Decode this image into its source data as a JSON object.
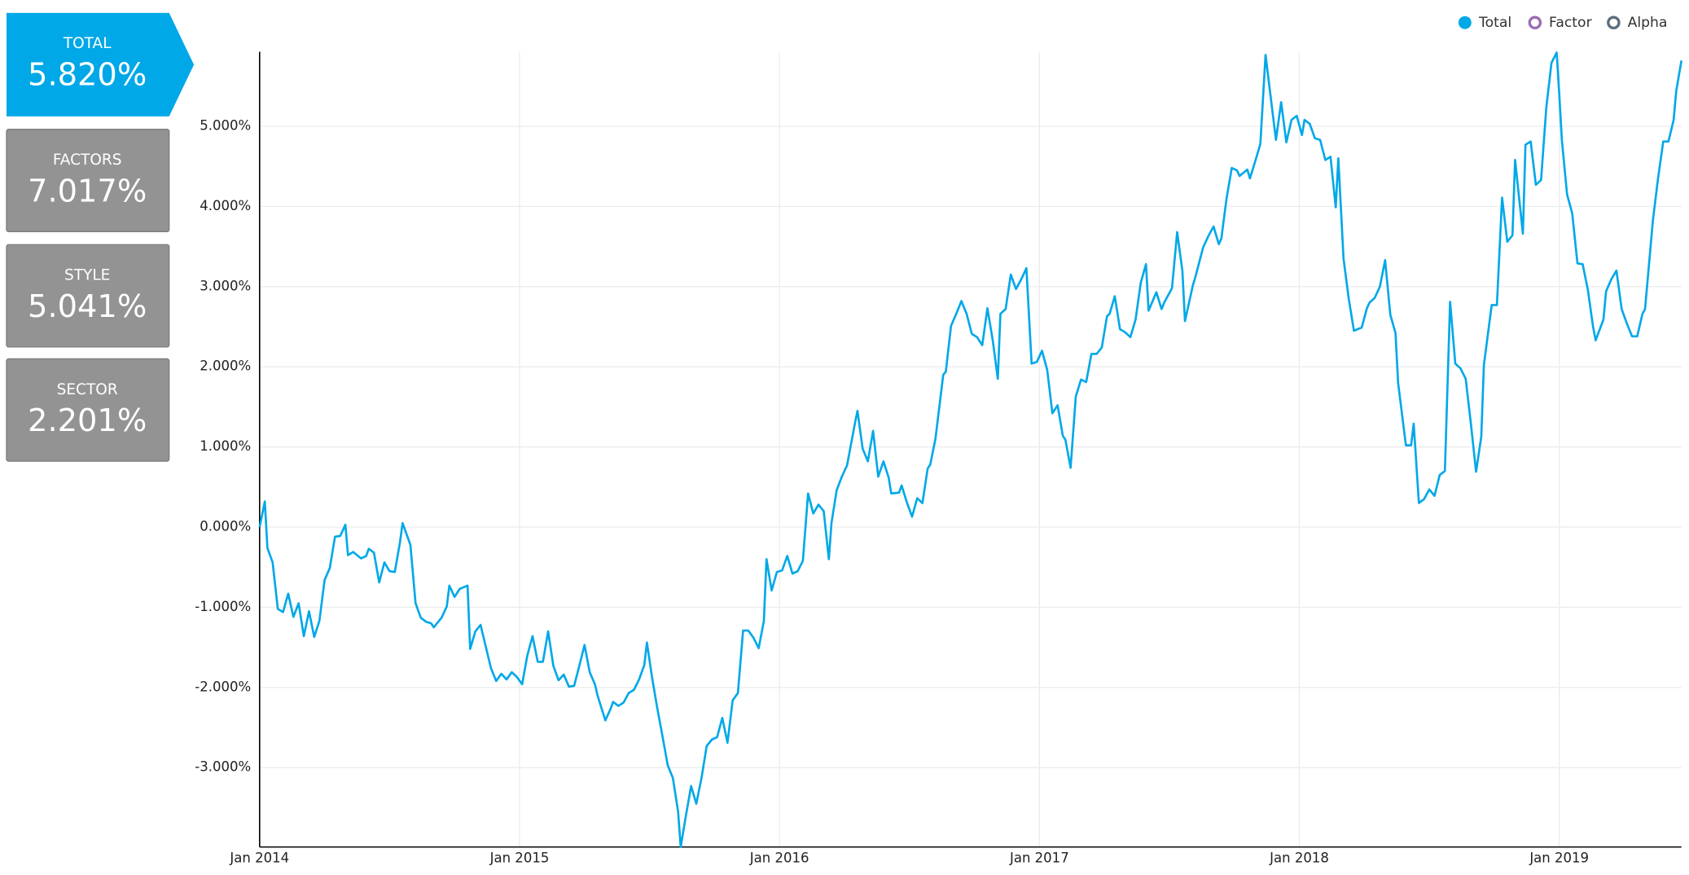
{
  "cards": [
    {
      "label": "TOTAL",
      "value": "5.820%"
    },
    {
      "label": "FACTORS",
      "value": "7.017%"
    },
    {
      "label": "STYLE",
      "value": "5.041%"
    },
    {
      "label": "SECTOR",
      "value": "2.201%"
    }
  ],
  "chart_data": {
    "type": "line",
    "x": [
      2014.0,
      2014.02,
      2014.03,
      2014.05,
      2014.07,
      2014.09,
      2014.11,
      2014.13,
      2014.15,
      2014.17,
      2014.19,
      2014.21,
      2014.23,
      2014.25,
      2014.27,
      2014.29,
      2014.31,
      2014.33,
      2014.34,
      2014.36,
      2014.39,
      2014.41,
      2014.42,
      2014.44,
      2014.46,
      2014.48,
      2014.5,
      2014.52,
      2014.54,
      2014.55,
      2014.58,
      2014.6,
      2014.62,
      2014.64,
      2014.66,
      2014.67,
      2014.7,
      2014.72,
      2014.73,
      2014.75,
      2014.77,
      2014.8,
      2014.81,
      2014.83,
      2014.85,
      2014.87,
      2014.89,
      2014.91,
      2014.93,
      2014.95,
      2014.97,
      2014.99,
      2015.01,
      2015.03,
      2015.05,
      2015.07,
      2015.09,
      2015.11,
      2015.13,
      2015.15,
      2015.17,
      2015.19,
      2015.21,
      2015.23,
      2015.25,
      2015.27,
      2015.29,
      2015.3,
      2015.33,
      2015.35,
      2015.36,
      2015.38,
      2015.4,
      2015.42,
      2015.44,
      2015.46,
      2015.48,
      2015.49,
      2015.51,
      2015.53,
      2015.55,
      2015.57,
      2015.59,
      2015.61,
      2015.62,
      2015.64,
      2015.66,
      2015.68,
      2015.7,
      2015.72,
      2015.74,
      2015.76,
      2015.78,
      2015.8,
      2015.82,
      2015.84,
      2015.86,
      2015.88,
      2015.9,
      2015.92,
      2015.94,
      2015.95,
      2015.97,
      2015.99,
      2016.01,
      2016.03,
      2016.05,
      2016.07,
      2016.09,
      2016.11,
      2016.13,
      2016.15,
      2016.17,
      2016.19,
      2016.2,
      2016.22,
      2016.24,
      2016.26,
      2016.29,
      2016.3,
      2016.32,
      2016.34,
      2016.36,
      2016.38,
      2016.4,
      2016.42,
      2016.43,
      2016.46,
      2016.47,
      2016.49,
      2016.51,
      2016.53,
      2016.55,
      2016.57,
      2016.58,
      2016.6,
      2016.63,
      2016.64,
      2016.66,
      2016.68,
      2016.7,
      2016.72,
      2016.74,
      2016.76,
      2016.78,
      2016.8,
      2016.82,
      2016.84,
      2016.85,
      2016.87,
      2016.89,
      2016.91,
      2016.93,
      2016.95,
      2016.97,
      2016.99,
      2017.01,
      2017.03,
      2017.05,
      2017.07,
      2017.09,
      2017.1,
      2017.12,
      2017.14,
      2017.16,
      2017.18,
      2017.2,
      2017.22,
      2017.24,
      2017.26,
      2017.27,
      2017.29,
      2017.31,
      2017.33,
      2017.35,
      2017.37,
      2017.39,
      2017.41,
      2017.42,
      2017.45,
      2017.47,
      2017.48,
      2017.51,
      2017.53,
      2017.55,
      2017.56,
      2017.59,
      2017.6,
      2017.63,
      2017.65,
      2017.67,
      2017.69,
      2017.7,
      2017.72,
      2017.74,
      2017.76,
      2017.77,
      2017.8,
      2017.81,
      2017.83,
      2017.85,
      2017.87,
      2017.89,
      2017.91,
      2017.93,
      2017.95,
      2017.97,
      2017.99,
      2018.01,
      2018.02,
      2018.04,
      2018.06,
      2018.08,
      2018.1,
      2018.12,
      2018.14,
      2018.15,
      2018.17,
      2018.19,
      2018.21,
      2018.24,
      2018.26,
      2018.27,
      2018.29,
      2018.31,
      2018.33,
      2018.35,
      2018.37,
      2018.38,
      2018.41,
      2018.43,
      2018.44,
      2018.46,
      2018.48,
      2018.5,
      2018.52,
      2018.54,
      2018.56,
      2018.58,
      2018.6,
      2018.62,
      2018.64,
      2018.66,
      2018.68,
      2018.7,
      2018.71,
      2018.74,
      2018.76,
      2018.78,
      2018.8,
      2018.82,
      2018.83,
      2018.86,
      2018.87,
      2018.89,
      2018.91,
      2018.93,
      2018.95,
      2018.97,
      2018.99,
      2019.0,
      2019.01,
      2019.03,
      2019.05,
      2019.07,
      2019.09,
      2019.11,
      2019.13,
      2019.14,
      2019.17,
      2019.18,
      2019.2,
      2019.22,
      2019.24,
      2019.26,
      2019.28,
      2019.3,
      2019.32,
      2019.33,
      2019.36,
      2019.38,
      2019.4,
      2019.42,
      2019.44,
      2019.45,
      2019.47
    ],
    "series": [
      {
        "name": "Total",
        "color": "#00a8e8",
        "values": [
          0.0,
          0.32,
          -0.26,
          -0.44,
          -1.02,
          -1.06,
          -0.83,
          -1.12,
          -0.95,
          -1.36,
          -1.05,
          -1.37,
          -1.17,
          -0.66,
          -0.51,
          -0.12,
          -0.11,
          0.03,
          -0.35,
          -0.31,
          -0.39,
          -0.36,
          -0.27,
          -0.32,
          -0.69,
          -0.44,
          -0.55,
          -0.56,
          -0.19,
          0.05,
          -0.22,
          -0.95,
          -1.13,
          -1.18,
          -1.2,
          -1.25,
          -1.13,
          -0.99,
          -0.73,
          -0.87,
          -0.77,
          -0.73,
          -1.52,
          -1.3,
          -1.22,
          -1.49,
          -1.76,
          -1.92,
          -1.83,
          -1.9,
          -1.81,
          -1.87,
          -1.96,
          -1.6,
          -1.36,
          -1.68,
          -1.68,
          -1.3,
          -1.73,
          -1.91,
          -1.84,
          -1.99,
          -1.98,
          -1.73,
          -1.47,
          -1.81,
          -1.96,
          -2.1,
          -2.41,
          -2.27,
          -2.18,
          -2.23,
          -2.19,
          -2.07,
          -2.03,
          -1.9,
          -1.72,
          -1.44,
          -1.88,
          -2.26,
          -2.61,
          -2.97,
          -3.13,
          -3.55,
          -3.99,
          -3.6,
          -3.23,
          -3.45,
          -3.13,
          -2.73,
          -2.65,
          -2.62,
          -2.38,
          -2.69,
          -2.16,
          -2.07,
          -1.29,
          -1.29,
          -1.38,
          -1.51,
          -1.17,
          -0.4,
          -0.79,
          -0.56,
          -0.54,
          -0.36,
          -0.58,
          -0.55,
          -0.42,
          0.42,
          0.17,
          0.28,
          0.2,
          -0.4,
          0.05,
          0.46,
          0.63,
          0.77,
          1.29,
          1.45,
          0.98,
          0.82,
          1.2,
          0.63,
          0.82,
          0.62,
          0.42,
          0.43,
          0.52,
          0.31,
          0.13,
          0.36,
          0.3,
          0.73,
          0.78,
          1.1,
          1.9,
          1.94,
          2.51,
          2.66,
          2.82,
          2.66,
          2.41,
          2.37,
          2.27,
          2.73,
          2.34,
          1.85,
          2.66,
          2.72,
          3.15,
          2.97,
          3.09,
          3.23,
          2.04,
          2.06,
          2.2,
          1.96,
          1.42,
          1.52,
          1.14,
          1.09,
          0.74,
          1.63,
          1.84,
          1.81,
          2.16,
          2.16,
          2.24,
          2.63,
          2.66,
          2.88,
          2.47,
          2.43,
          2.37,
          2.59,
          3.05,
          3.28,
          2.7,
          2.93,
          2.72,
          2.8,
          2.98,
          3.68,
          3.2,
          2.57,
          3.01,
          3.12,
          3.49,
          3.63,
          3.75,
          3.53,
          3.6,
          4.1,
          4.48,
          4.45,
          4.38,
          4.46,
          4.35,
          4.56,
          4.78,
          5.89,
          5.36,
          4.83,
          5.3,
          4.8,
          5.08,
          5.13,
          4.89,
          5.08,
          5.03,
          4.85,
          4.83,
          4.58,
          4.62,
          3.99,
          4.6,
          3.35,
          2.85,
          2.45,
          2.49,
          2.73,
          2.8,
          2.86,
          3.0,
          3.33,
          2.65,
          2.42,
          1.8,
          1.02,
          1.02,
          1.29,
          0.3,
          0.35,
          0.47,
          0.39,
          0.65,
          0.7,
          2.81,
          2.04,
          1.98,
          1.85,
          1.29,
          0.69,
          1.13,
          2.02,
          2.77,
          2.77,
          4.11,
          3.56,
          3.64,
          4.58,
          3.66,
          4.77,
          4.81,
          4.27,
          4.33,
          5.23,
          5.79,
          5.92,
          5.4,
          4.83,
          4.15,
          3.91,
          3.29,
          3.28,
          2.96,
          2.5,
          2.33,
          2.59,
          2.94,
          3.09,
          3.2,
          2.72,
          2.54,
          2.38,
          2.38,
          2.66,
          2.72,
          3.82,
          4.35,
          4.81,
          4.81,
          5.08,
          5.44,
          5.82
        ]
      },
      {
        "name": "Factor",
        "color": "#9b6bb5",
        "visible": false
      },
      {
        "name": "Alpha",
        "color": "#5d6d7e",
        "visible": false
      }
    ],
    "xlim": [
      2014,
      2019.47
    ],
    "xticks": [
      {
        "value": 2014,
        "label": "Jan 2014"
      },
      {
        "value": 2015,
        "label": "Jan 2015"
      },
      {
        "value": 2016,
        "label": "Jan 2016"
      },
      {
        "value": 2017,
        "label": "Jan 2017"
      },
      {
        "value": 2018,
        "label": "Jan 2018"
      },
      {
        "value": 2019,
        "label": "Jan 2019"
      }
    ],
    "ylim": [
      -3.99,
      5.93
    ],
    "yticks": [
      {
        "value": -3,
        "label": "-3.000%"
      },
      {
        "value": -2,
        "label": "-2.000%"
      },
      {
        "value": -1,
        "label": "-1.000%"
      },
      {
        "value": 0,
        "label": "0.000%"
      },
      {
        "value": 1,
        "label": "1.000%"
      },
      {
        "value": 2,
        "label": "2.000%"
      },
      {
        "value": 3,
        "label": "3.000%"
      },
      {
        "value": 4,
        "label": "4.000%"
      },
      {
        "value": 5,
        "label": "5.000%"
      }
    ],
    "grid": true,
    "legend": "top-right"
  }
}
